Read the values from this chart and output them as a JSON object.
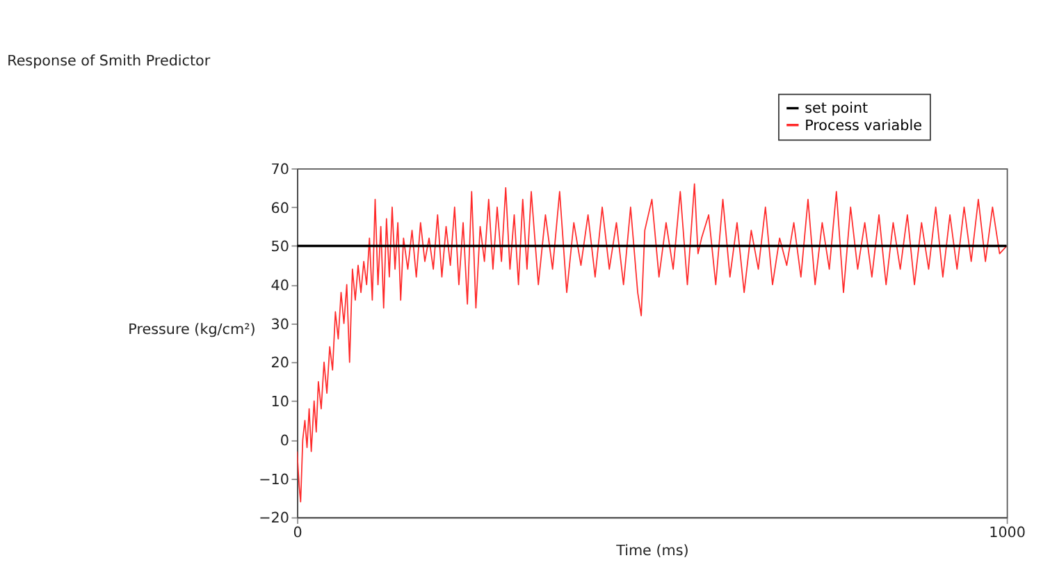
{
  "chart_data": {
    "type": "line",
    "title": "Response of Smith Predictor",
    "xlabel": "Time (ms)",
    "ylabel": "Pressure (kg/cm²)",
    "xlim": [
      0,
      1000
    ],
    "xticks": [
      0,
      1000
    ],
    "ylim": [
      -20,
      70
    ],
    "yticks": [
      -20,
      -10,
      0,
      10,
      20,
      30,
      40,
      50,
      60,
      70
    ],
    "grid": false,
    "legend": "top right",
    "line_style": "solid",
    "marker": "none",
    "series": [
      {
        "name": "Process variable",
        "color": "#ff2a2a",
        "x": [
          0,
          3,
          5,
          8,
          11,
          14,
          17,
          20,
          24,
          27,
          30,
          34,
          38,
          42,
          46,
          50,
          54,
          58,
          62,
          66,
          70,
          74,
          78,
          82,
          86,
          90,
          94,
          98,
          102,
          106,
          110,
          114,
          118,
          122,
          126,
          130,
          134,
          138,
          142,
          146,
          150,
          156,
          162,
          168,
          174,
          180,
          186,
          192,
          198,
          204,
          210,
          216,
          222,
          228,
          234,
          240,
          246,
          252,
          258,
          264,
          270,
          276,
          282,
          288,
          294,
          300,
          306,
          312,
          318,
          324,
          330,
          340,
          350,
          360,
          370,
          380,
          390,
          400,
          410,
          420,
          430,
          440,
          450,
          460,
          470,
          480,
          485,
          490,
          500,
          510,
          520,
          530,
          540,
          550,
          560,
          565,
          570,
          580,
          590,
          600,
          610,
          620,
          630,
          640,
          650,
          660,
          670,
          680,
          690,
          700,
          710,
          720,
          730,
          740,
          750,
          760,
          770,
          780,
          790,
          800,
          810,
          820,
          830,
          840,
          850,
          860,
          870,
          880,
          890,
          900,
          910,
          920,
          930,
          940,
          950,
          960,
          970,
          980,
          990,
          1000
        ],
        "values": [
          -3,
          -12,
          -16,
          0,
          5,
          -2,
          8,
          -3,
          10,
          2,
          15,
          8,
          20,
          12,
          24,
          18,
          33,
          26,
          38,
          30,
          40,
          20,
          44,
          36,
          45,
          38,
          46,
          40,
          52,
          36,
          62,
          40,
          55,
          34,
          57,
          42,
          60,
          44,
          56,
          36,
          52,
          44,
          54,
          42,
          56,
          46,
          52,
          44,
          58,
          42,
          55,
          45,
          60,
          40,
          56,
          35,
          64,
          34,
          55,
          46,
          62,
          44,
          60,
          46,
          65,
          44,
          58,
          40,
          62,
          44,
          64,
          40,
          58,
          44,
          64,
          38,
          56,
          45,
          58,
          42,
          60,
          44,
          56,
          40,
          60,
          38,
          32,
          54,
          62,
          42,
          56,
          44,
          64,
          40,
          66,
          48,
          52,
          58,
          40,
          62,
          42,
          56,
          38,
          54,
          44,
          60,
          40,
          52,
          45,
          56,
          42,
          62,
          40,
          56,
          44,
          64,
          38,
          60,
          44,
          56,
          42,
          58,
          40,
          56,
          44,
          58,
          40,
          56,
          44,
          60,
          42,
          58,
          44,
          60,
          46,
          62,
          46,
          60,
          48,
          50
        ]
      },
      {
        "name": "set point",
        "color": "#000000",
        "x": [
          0,
          1000
        ],
        "values": [
          50,
          50
        ]
      }
    ]
  }
}
